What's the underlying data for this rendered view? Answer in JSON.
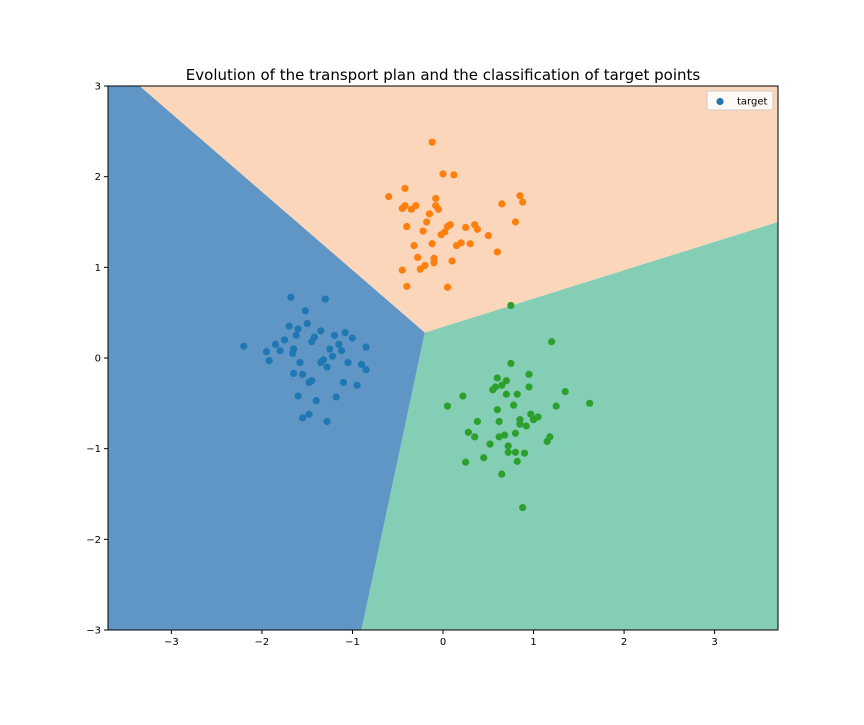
{
  "chart_data": {
    "type": "scatter",
    "title": "Evolution of the transport plan and the classification of target points",
    "xlabel": "",
    "ylabel": "",
    "xlim": [
      -3.7,
      3.7
    ],
    "ylim": [
      -3,
      3
    ],
    "xticks": [
      -3,
      -2,
      -1,
      0,
      1,
      2,
      3
    ],
    "yticks": [
      -3,
      -2,
      -1,
      0,
      1,
      2,
      3
    ],
    "xtick_labels": [
      "−3",
      "−2",
      "−1",
      "0",
      "1",
      "2",
      "3"
    ],
    "ytick_labels": [
      "−3",
      "−2",
      "−1",
      "0",
      "1",
      "2",
      "3"
    ],
    "grid": false,
    "legend": {
      "placement": "top-right",
      "entries": [
        "target"
      ]
    },
    "decision_regions": {
      "vertex": [
        -0.2,
        0.28
      ],
      "boundaries": [
        {
          "from": [
            -0.2,
            0.28
          ],
          "to": [
            -3.35,
            3.0
          ]
        },
        {
          "from": [
            -0.2,
            0.28
          ],
          "to": [
            3.7,
            1.5
          ]
        },
        {
          "from": [
            -0.2,
            0.28
          ],
          "to": [
            -0.9,
            -3.0
          ]
        }
      ],
      "colors": {
        "blue": "#5f96c6",
        "orange": "#fbd6ba",
        "green": "#84ceb5"
      }
    },
    "series": [
      {
        "color": "#1f77b4",
        "x": [
          -2.2,
          -1.95,
          -1.92,
          -1.85,
          -1.8,
          -1.75,
          -1.7,
          -1.68,
          -1.65,
          -1.66,
          -1.65,
          -1.62,
          -1.6,
          -1.6,
          -1.58,
          -1.55,
          -1.55,
          -1.52,
          -1.5,
          -1.48,
          -1.48,
          -1.45,
          -1.45,
          -1.42,
          -1.4,
          -1.35,
          -1.35,
          -1.32,
          -1.3,
          -1.28,
          -1.28,
          -1.25,
          -1.22,
          -1.2,
          -1.18,
          -1.15,
          -1.12,
          -1.1,
          -1.08,
          -1.05,
          -1.0,
          -0.95,
          -0.9,
          -0.85,
          -0.85
        ],
        "y": [
          0.13,
          0.07,
          -0.03,
          0.15,
          0.08,
          0.2,
          0.35,
          0.67,
          0.1,
          0.05,
          -0.17,
          0.25,
          0.32,
          -0.42,
          -0.05,
          -0.18,
          -0.66,
          0.52,
          0.38,
          -0.27,
          -0.62,
          -0.25,
          0.18,
          0.23,
          -0.47,
          0.3,
          -0.05,
          -0.02,
          0.65,
          -0.1,
          -0.7,
          0.1,
          0.02,
          0.25,
          -0.43,
          0.15,
          0.08,
          -0.27,
          0.28,
          -0.05,
          0.22,
          -0.3,
          -0.07,
          0.12,
          -0.13
        ]
      },
      {
        "color": "#ff7f0e",
        "x": [
          -0.6,
          -0.45,
          -0.45,
          -0.42,
          -0.42,
          -0.4,
          -0.4,
          -0.35,
          -0.32,
          -0.3,
          -0.28,
          -0.25,
          -0.22,
          -0.2,
          -0.18,
          -0.15,
          -0.12,
          -0.12,
          -0.1,
          -0.1,
          -0.08,
          -0.08,
          -0.05,
          -0.02,
          0.0,
          0.02,
          0.05,
          0.05,
          0.08,
          0.1,
          0.12,
          0.15,
          0.2,
          0.25,
          0.3,
          0.35,
          0.38,
          0.5,
          0.6,
          0.65,
          0.8,
          0.85,
          0.88
        ],
        "y": [
          1.78,
          1.65,
          0.97,
          1.68,
          1.87,
          0.79,
          1.45,
          1.64,
          1.24,
          1.68,
          1.11,
          0.98,
          1.4,
          1.02,
          1.5,
          1.59,
          1.26,
          2.38,
          1.05,
          1.1,
          1.68,
          1.76,
          1.64,
          1.36,
          2.03,
          1.39,
          0.78,
          1.45,
          1.47,
          1.07,
          2.02,
          1.24,
          1.27,
          1.44,
          1.26,
          1.47,
          1.42,
          1.35,
          1.17,
          1.7,
          1.5,
          1.79,
          1.72
        ]
      },
      {
        "color": "#2ca02c",
        "x": [
          0.05,
          0.22,
          0.25,
          0.28,
          0.35,
          0.38,
          0.45,
          0.52,
          0.55,
          0.58,
          0.6,
          0.6,
          0.62,
          0.62,
          0.65,
          0.65,
          0.68,
          0.7,
          0.7,
          0.72,
          0.72,
          0.75,
          0.75,
          0.78,
          0.8,
          0.8,
          0.82,
          0.82,
          0.85,
          0.85,
          0.88,
          0.9,
          0.92,
          0.95,
          0.95,
          0.97,
          1.0,
          1.05,
          1.15,
          1.18,
          1.2,
          1.25,
          1.35,
          1.62
        ],
        "y": [
          -0.53,
          -0.42,
          -1.15,
          -0.82,
          -0.87,
          -0.7,
          -1.1,
          -0.95,
          -0.35,
          -0.32,
          -0.22,
          -0.57,
          -0.7,
          -0.87,
          -1.28,
          -0.3,
          -0.85,
          -0.25,
          -0.4,
          -0.97,
          -1.04,
          0.58,
          -0.06,
          -0.52,
          -0.83,
          -1.04,
          -0.4,
          -1.14,
          -0.73,
          -0.68,
          -1.65,
          -1.05,
          -0.75,
          -0.18,
          -0.32,
          -0.62,
          -0.68,
          -0.65,
          -0.92,
          -0.87,
          0.18,
          -0.53,
          -0.37,
          -0.5
        ]
      }
    ]
  }
}
